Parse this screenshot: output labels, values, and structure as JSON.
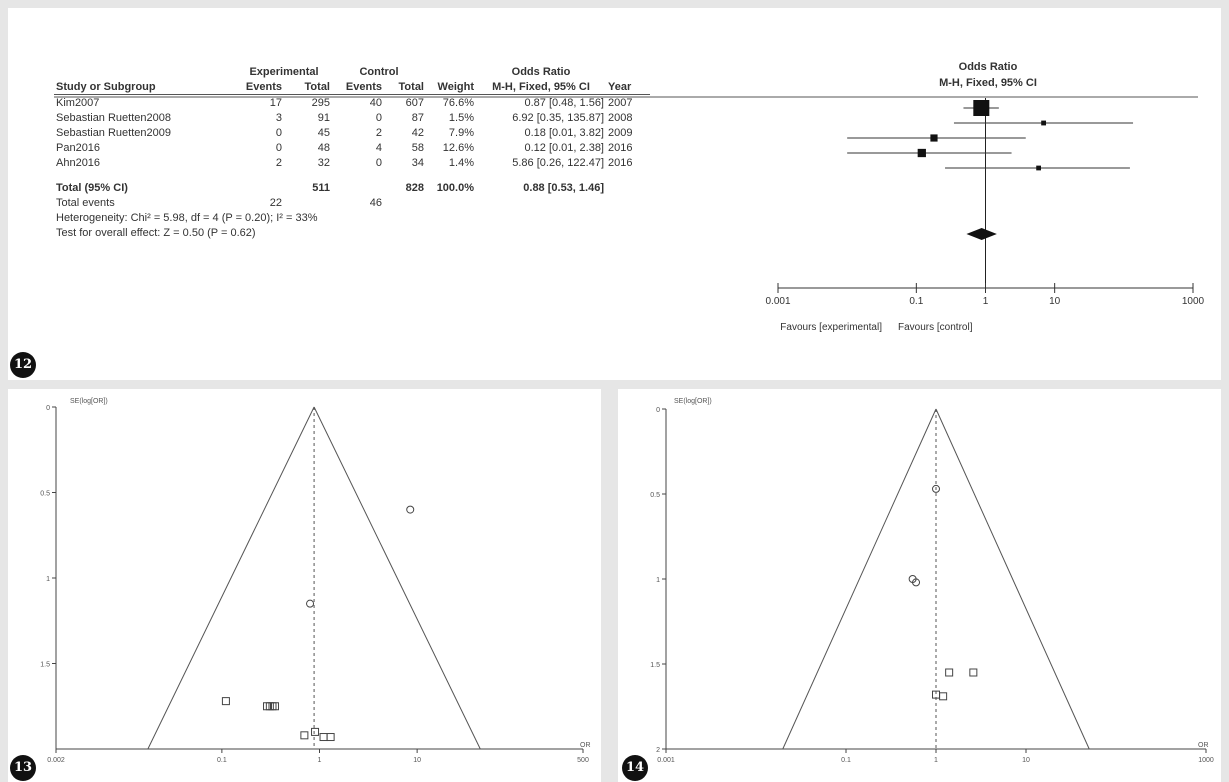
{
  "forest": {
    "col_headers": {
      "group1": "Experimental",
      "group2": "Control",
      "or_group": "Odds Ratio",
      "study": "Study or Subgroup",
      "events1": "Events",
      "total1": "Total",
      "events2": "Events",
      "total2": "Total",
      "weight": "Weight",
      "method": "M-H, Fixed, 95% CI",
      "year": "Year"
    },
    "rows": [
      {
        "study": "Kim2007",
        "e1": "17",
        "t1": "295",
        "e2": "40",
        "t2": "607",
        "weight": "76.6%",
        "ci": "0.87 [0.48, 1.56]",
        "year": "2007"
      },
      {
        "study": "Sebastian Ruetten2008",
        "e1": "3",
        "t1": "91",
        "e2": "0",
        "t2": "87",
        "weight": "1.5%",
        "ci": "6.92 [0.35, 135.87]",
        "year": "2008"
      },
      {
        "study": "Sebastian Ruetten2009",
        "e1": "0",
        "t1": "45",
        "e2": "2",
        "t2": "42",
        "weight": "7.9%",
        "ci": "0.18 [0.01, 3.82]",
        "year": "2009"
      },
      {
        "study": "Pan2016",
        "e1": "0",
        "t1": "48",
        "e2": "4",
        "t2": "58",
        "weight": "12.6%",
        "ci": "0.12 [0.01, 2.38]",
        "year": "2016"
      },
      {
        "study": "Ahn2016",
        "e1": "2",
        "t1": "32",
        "e2": "0",
        "t2": "34",
        "weight": "1.4%",
        "ci": "5.86 [0.26, 122.47]",
        "year": "2016"
      }
    ],
    "total": {
      "label": "Total (95% CI)",
      "t1": "511",
      "t2": "828",
      "weight": "100.0%",
      "ci": "0.88 [0.53, 1.46]"
    },
    "events": {
      "label": "Total events",
      "e1": "22",
      "e2": "46"
    },
    "heterogeneity": "Heterogeneity: Chi² = 5.98, df = 4 (P = 0.20); I² = 33%",
    "overall": "Test for overall effect: Z = 0.50 (P = 0.62)",
    "plot_title": "Odds Ratio",
    "plot_subtitle": "M-H, Fixed, 95% CI",
    "axis_ticks": [
      "0.001",
      "0.1",
      "1",
      "10",
      "1000"
    ],
    "favours_left": "Favours [experimental]",
    "favours_right": "Favours [control]"
  },
  "badges": {
    "p12": "12",
    "p13": "13",
    "p14": "14"
  },
  "funnel13": {
    "ylabel": "SE(log[OR])",
    "xlabel": "OR",
    "x_ticks": [
      "0.002",
      "0.1",
      "1",
      "10",
      "500"
    ],
    "y_ticks": [
      "0",
      "0.5",
      "1",
      "1.5"
    ]
  },
  "funnel14": {
    "ylabel": "SE(log[OR])",
    "xlabel": "OR",
    "x_ticks": [
      "0.001",
      "0.1",
      "1",
      "10",
      "1000"
    ],
    "y_ticks": [
      "0",
      "0.5",
      "1",
      "1.5",
      "2"
    ]
  },
  "chart_data": [
    {
      "type": "scatter",
      "title": "Odds Ratio",
      "subtitle": "M-H, Fixed, 95% CI",
      "scale": "log",
      "xlim": [
        0.001,
        1000
      ],
      "labels": [
        "Favours [experimental]",
        "Favours [control]"
      ],
      "points": [
        {
          "study": "Kim2007",
          "or": 0.87,
          "lo": 0.48,
          "hi": 1.56,
          "weight": 76.6
        },
        {
          "study": "Sebastian Ruetten2008",
          "or": 6.92,
          "lo": 0.35,
          "hi": 135.87,
          "weight": 1.5
        },
        {
          "study": "Sebastian Ruetten2009",
          "or": 0.18,
          "lo": 0.01,
          "hi": 3.82,
          "weight": 7.9
        },
        {
          "study": "Pan2016",
          "or": 0.12,
          "lo": 0.01,
          "hi": 2.38,
          "weight": 12.6
        },
        {
          "study": "Ahn2016",
          "or": 5.86,
          "lo": 0.26,
          "hi": 122.47,
          "weight": 1.4
        }
      ],
      "summary": {
        "or": 0.88,
        "lo": 0.53,
        "hi": 1.46
      }
    },
    {
      "type": "scatter",
      "xlabel": "OR",
      "ylabel": "SE(log[OR])",
      "x_scale": "log",
      "xlim": [
        0.002,
        500
      ],
      "ylim": [
        0,
        2
      ],
      "y_reversed": true,
      "center": 0.88,
      "points": [
        {
          "x": 8.5,
          "y": 0.6
        },
        {
          "x": 0.8,
          "y": 1.15
        },
        {
          "x": 0.11,
          "y": 1.72
        },
        {
          "x": 0.29,
          "y": 1.75
        },
        {
          "x": 0.31,
          "y": 1.75
        },
        {
          "x": 0.33,
          "y": 1.75
        },
        {
          "x": 0.35,
          "y": 1.75
        },
        {
          "x": 0.7,
          "y": 1.92
        },
        {
          "x": 0.9,
          "y": 1.9
        },
        {
          "x": 1.1,
          "y": 1.93
        },
        {
          "x": 1.3,
          "y": 1.93
        }
      ]
    },
    {
      "type": "scatter",
      "xlabel": "OR",
      "ylabel": "SE(log[OR])",
      "x_scale": "log",
      "xlim": [
        0.001,
        1000
      ],
      "ylim": [
        0,
        2
      ],
      "y_reversed": true,
      "center": 1.0,
      "points": [
        {
          "x": 1.0,
          "y": 0.47
        },
        {
          "x": 0.55,
          "y": 1.0
        },
        {
          "x": 0.6,
          "y": 1.02
        },
        {
          "x": 1.4,
          "y": 1.55
        },
        {
          "x": 2.6,
          "y": 1.55
        },
        {
          "x": 1.0,
          "y": 1.68
        },
        {
          "x": 1.2,
          "y": 1.69
        }
      ]
    }
  ]
}
